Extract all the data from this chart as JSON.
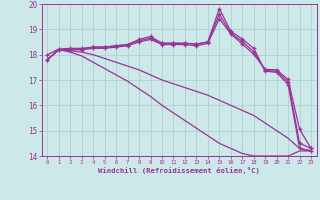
{
  "xlabel": "Windchill (Refroidissement éolien,°C)",
  "background_color": "#cce8e8",
  "grid_color": "#aacccc",
  "line_color": "#993399",
  "spine_color": "#993399",
  "tick_color": "#993399",
  "xlim": [
    -0.5,
    23.5
  ],
  "ylim": [
    14,
    20
  ],
  "yticks": [
    14,
    15,
    16,
    17,
    18,
    19,
    20
  ],
  "xticks": [
    0,
    1,
    2,
    3,
    4,
    5,
    6,
    7,
    8,
    9,
    10,
    11,
    12,
    13,
    14,
    15,
    16,
    17,
    18,
    19,
    20,
    21,
    22,
    23
  ],
  "series": {
    "line1_marked": [
      17.8,
      18.2,
      18.2,
      18.2,
      18.3,
      18.3,
      18.35,
      18.4,
      18.6,
      18.72,
      18.45,
      18.45,
      18.45,
      18.42,
      18.5,
      19.82,
      18.92,
      18.62,
      18.25,
      17.35,
      17.3,
      16.82,
      14.3,
      14.2
    ],
    "line2_marked": [
      18.0,
      18.22,
      18.25,
      18.25,
      18.3,
      18.3,
      18.35,
      18.4,
      18.55,
      18.65,
      18.45,
      18.45,
      18.45,
      18.42,
      18.5,
      19.6,
      18.85,
      18.52,
      18.12,
      17.38,
      17.35,
      16.92,
      14.5,
      14.3
    ],
    "line3_marked": [
      17.8,
      18.2,
      18.2,
      18.2,
      18.25,
      18.25,
      18.3,
      18.35,
      18.5,
      18.6,
      18.4,
      18.4,
      18.4,
      18.35,
      18.45,
      19.42,
      18.82,
      18.42,
      18.02,
      17.42,
      17.4,
      17.02,
      15.05,
      14.3
    ],
    "line4_plain": [
      17.8,
      18.2,
      18.15,
      18.1,
      18.0,
      17.85,
      17.7,
      17.55,
      17.4,
      17.2,
      17.0,
      16.85,
      16.7,
      16.55,
      16.4,
      16.2,
      16.0,
      15.8,
      15.6,
      15.3,
      15.0,
      14.7,
      14.3,
      14.2
    ],
    "line5_plain": [
      17.8,
      18.2,
      18.1,
      17.95,
      17.7,
      17.45,
      17.2,
      16.95,
      16.65,
      16.35,
      16.0,
      15.7,
      15.4,
      15.1,
      14.8,
      14.5,
      14.3,
      14.1,
      14.0,
      14.0,
      14.0,
      14.0,
      14.2,
      14.2
    ]
  }
}
